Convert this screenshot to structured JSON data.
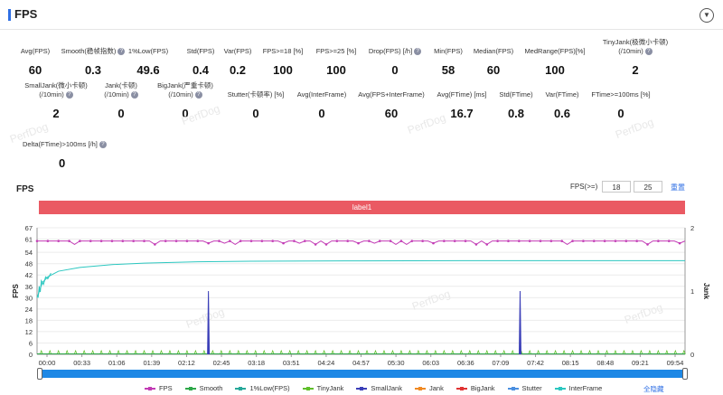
{
  "header": {
    "title": "FPS",
    "collapse_icon": "chevron-down-icon"
  },
  "stats": [
    {
      "label": "Avg(FPS)",
      "value": "60",
      "help": false
    },
    {
      "label": "Smooth(稳帧指数)",
      "value": "0.3",
      "help": true
    },
    {
      "label": "1%Low(FPS)",
      "value": "49.6",
      "help": false
    },
    {
      "label": "Std(FPS)",
      "value": "0.4",
      "help": false
    },
    {
      "label": "Var(FPS)",
      "value": "0.2",
      "help": false
    },
    {
      "label": "FPS>=18 [%]",
      "value": "100",
      "help": false
    },
    {
      "label": "FPS>=25 [%]",
      "value": "100",
      "help": false
    },
    {
      "label": "Drop(FPS) [/h]",
      "value": "0",
      "help": true
    },
    {
      "label": "Min(FPS)",
      "value": "58",
      "help": false
    },
    {
      "label": "Median(FPS)",
      "value": "60",
      "help": false
    },
    {
      "label": "MedRange(FPS)[%]",
      "value": "100",
      "help": false
    },
    {
      "label": "TinyJank(极微小卡顿)",
      "label2": "(/10min)",
      "value": "2",
      "help": true
    },
    {
      "label": "SmallJank(微小卡顿)",
      "label2": "(/10min)",
      "value": "2",
      "help": true
    },
    {
      "label": "Jank(卡顿)",
      "label2": "(/10min)",
      "value": "0",
      "help": true
    },
    {
      "label": "BigJank(严重卡顿)",
      "label2": "(/10min)",
      "value": "0",
      "help": true
    },
    {
      "label": "Stutter(卡顿率) [%]",
      "value": "0",
      "help": false
    },
    {
      "label": "Avg(InterFrame)",
      "value": "0",
      "help": false
    },
    {
      "label": "Avg(FPS+InterFrame)",
      "value": "60",
      "help": false
    },
    {
      "label": "Avg(FTime) [ms]",
      "value": "16.7",
      "help": false
    },
    {
      "label": "Std(FTime)",
      "value": "0.8",
      "help": false
    },
    {
      "label": "Var(FTime)",
      "value": "0.6",
      "help": false
    },
    {
      "label": "FTime>=100ms [%]",
      "value": "0",
      "help": false
    },
    {
      "label": "Delta(FTime)>100ms [/h]",
      "value": "0",
      "help": true
    }
  ],
  "watermark": "PerfDog",
  "chart_section": {
    "title": "FPS",
    "filter_label": "FPS(>=)",
    "filter_low": "18",
    "filter_high": "25",
    "reset_label": "重置",
    "label_bar": "label1",
    "hide_all": "全隐藏"
  },
  "colors": {
    "fps": "#c23bb5",
    "smooth": "#2ea84a",
    "low1": "#27a89a",
    "tinyjank": "#5fbf2a",
    "smalljank": "#3b3fb8",
    "jank": "#f08a24",
    "bigjank": "#e03434",
    "stutter": "#4a8fe0",
    "interframe": "#2cc7c0",
    "label_bar": "#ea5a63",
    "scroll": "#1e88e5"
  },
  "chart_data": {
    "type": "line",
    "x_ticks": [
      "00:00",
      "00:33",
      "01:06",
      "01:39",
      "02:12",
      "02:45",
      "03:18",
      "03:51",
      "04:24",
      "04:57",
      "05:30",
      "06:03",
      "06:36",
      "07:09",
      "07:42",
      "08:15",
      "08:48",
      "09:21",
      "09:54"
    ],
    "xlabel": "",
    "ylabel": "FPS",
    "ylabel_right": "Jank",
    "ylim": [
      0,
      67
    ],
    "y_ticks": [
      0,
      6,
      12,
      18,
      24,
      30,
      36,
      42,
      48,
      54,
      61,
      67
    ],
    "ylim_right": [
      0,
      2
    ],
    "y_ticks_right": [
      0,
      1,
      2
    ],
    "x_range_seconds": [
      0,
      605
    ],
    "series": [
      {
        "name": "FPS",
        "approx_value": 60,
        "desc": "steady around 60 with small dips to ~58"
      },
      {
        "name": "Smooth",
        "approx_value": 0
      },
      {
        "name": "1%Low(FPS)",
        "points": [
          [
            0,
            30
          ],
          [
            5,
            38
          ],
          [
            10,
            41
          ],
          [
            20,
            44
          ],
          [
            40,
            46
          ],
          [
            70,
            47.5
          ],
          [
            100,
            48.3
          ],
          [
            150,
            49
          ],
          [
            200,
            49.3
          ],
          [
            300,
            49.5
          ],
          [
            400,
            49.6
          ],
          [
            605,
            49.6
          ]
        ]
      },
      {
        "name": "TinyJank",
        "approx_value": 0
      },
      {
        "name": "SmallJank",
        "spikes_at_seconds": [
          160,
          451
        ],
        "spike_value": 1
      },
      {
        "name": "Jank",
        "approx_value": 0
      },
      {
        "name": "BigJank",
        "approx_value": 0
      },
      {
        "name": "Stutter",
        "approx_value": 0
      },
      {
        "name": "InterFrame",
        "approx_value": 0
      }
    ],
    "grid": true,
    "legend_position": "bottom"
  }
}
